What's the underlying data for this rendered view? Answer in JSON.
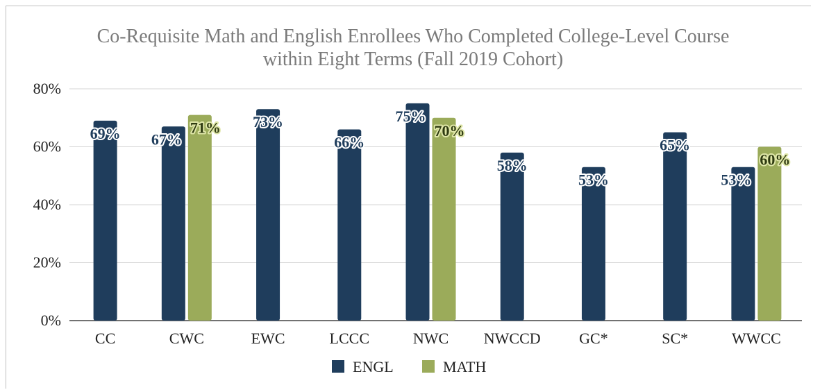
{
  "chart_data": {
    "type": "bar",
    "title_lines": [
      "Co-Requisite Math and English Enrollees Who Completed College-Level Course",
      "within Eight Terms (Fall 2019 Cohort)"
    ],
    "categories": [
      "CC",
      "CWC",
      "EWC",
      "LCCC",
      "NWC",
      "NWCCD",
      "GC*",
      "SC*",
      "WWCC"
    ],
    "series": [
      {
        "name": "ENGL",
        "color": "#1f3d5c",
        "values": [
          69,
          67,
          73,
          66,
          75,
          58,
          53,
          65,
          53
        ],
        "labels": [
          "69%",
          "67%",
          "73%",
          "66%",
          "75%",
          "58%",
          "53%",
          "65%",
          "53%"
        ]
      },
      {
        "name": "MATH",
        "color": "#9bab5a",
        "values": [
          null,
          71,
          null,
          null,
          70,
          null,
          null,
          null,
          60
        ],
        "labels": [
          null,
          "71%",
          null,
          null,
          "70%",
          null,
          null,
          null,
          "60%"
        ]
      }
    ],
    "ylim": [
      0,
      80
    ],
    "yticks": [
      0,
      20,
      40,
      60,
      80
    ],
    "ytick_labels": [
      "0%",
      "20%",
      "40%",
      "60%",
      "80%"
    ],
    "grid": true,
    "legend_position": "bottom"
  }
}
